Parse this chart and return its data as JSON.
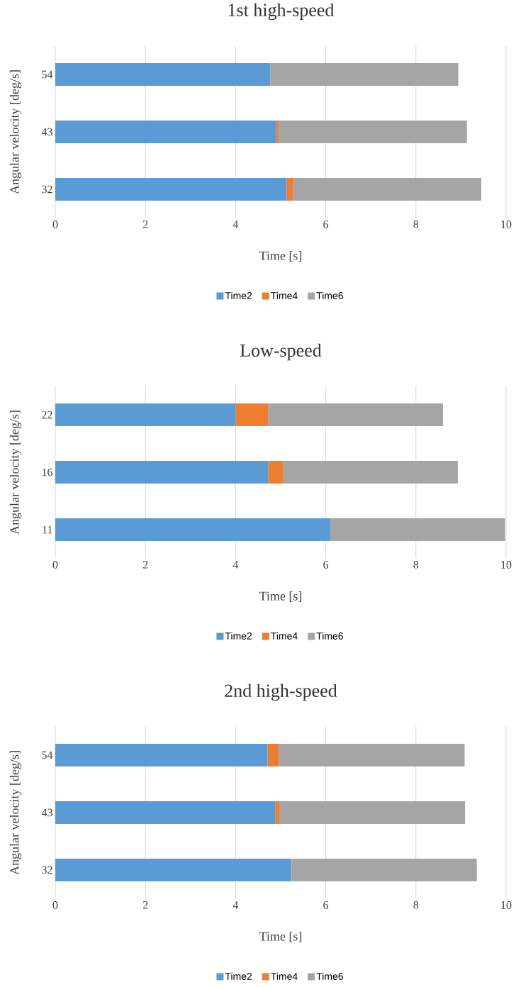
{
  "chart_data": [
    {
      "type": "bar",
      "orientation": "horizontal",
      "stacked": true,
      "title": "1st high-speed",
      "xlabel": "Time [s]",
      "ylabel": "Angular velocity [deg/s]",
      "categories": [
        "54",
        "43",
        "32"
      ],
      "xlim": [
        0,
        10
      ],
      "xticks": [
        0,
        2,
        4,
        6,
        8,
        10
      ],
      "grid": "x",
      "legend": "bottom",
      "series": [
        {
          "name": "Time2",
          "color": "#5b9bd5",
          "values": [
            4.77,
            4.9,
            5.13
          ]
        },
        {
          "name": "Time4",
          "color": "#ed7d31",
          "values": [
            0,
            0.06,
            0.15
          ]
        },
        {
          "name": "Time6",
          "color": "#a5a5a5",
          "values": [
            4.17,
            4.17,
            4.17
          ]
        }
      ]
    },
    {
      "type": "bar",
      "orientation": "horizontal",
      "stacked": true,
      "title": "Low-speed",
      "xlabel": "Time [s]",
      "ylabel": "Angular velocity [deg/s]",
      "categories": [
        "22",
        "16",
        "11"
      ],
      "xlim": [
        0,
        10
      ],
      "xticks": [
        0,
        2,
        4,
        6,
        8,
        10
      ],
      "grid": "x",
      "legend": "bottom",
      "series": [
        {
          "name": "Time2",
          "color": "#5b9bd5",
          "values": [
            4.0,
            4.72,
            6.1
          ]
        },
        {
          "name": "Time4",
          "color": "#ed7d31",
          "values": [
            0.72,
            0.34,
            0
          ]
        },
        {
          "name": "Time6",
          "color": "#a5a5a5",
          "values": [
            3.88,
            3.87,
            3.88
          ]
        }
      ]
    },
    {
      "type": "bar",
      "orientation": "horizontal",
      "stacked": true,
      "title": "2nd high-speed",
      "xlabel": "Time [s]",
      "ylabel": "Angular velocity [deg/s]",
      "categories": [
        "54",
        "43",
        "32"
      ],
      "xlim": [
        0,
        10
      ],
      "xticks": [
        0,
        2,
        4,
        6,
        8,
        10
      ],
      "grid": "x",
      "legend": "bottom",
      "series": [
        {
          "name": "Time2",
          "color": "#5b9bd5",
          "values": [
            4.71,
            4.88,
            5.24
          ]
        },
        {
          "name": "Time4",
          "color": "#ed7d31",
          "values": [
            0.25,
            0.1,
            0
          ]
        },
        {
          "name": "Time6",
          "color": "#a5a5a5",
          "values": [
            4.12,
            4.11,
            4.11
          ]
        }
      ]
    }
  ]
}
